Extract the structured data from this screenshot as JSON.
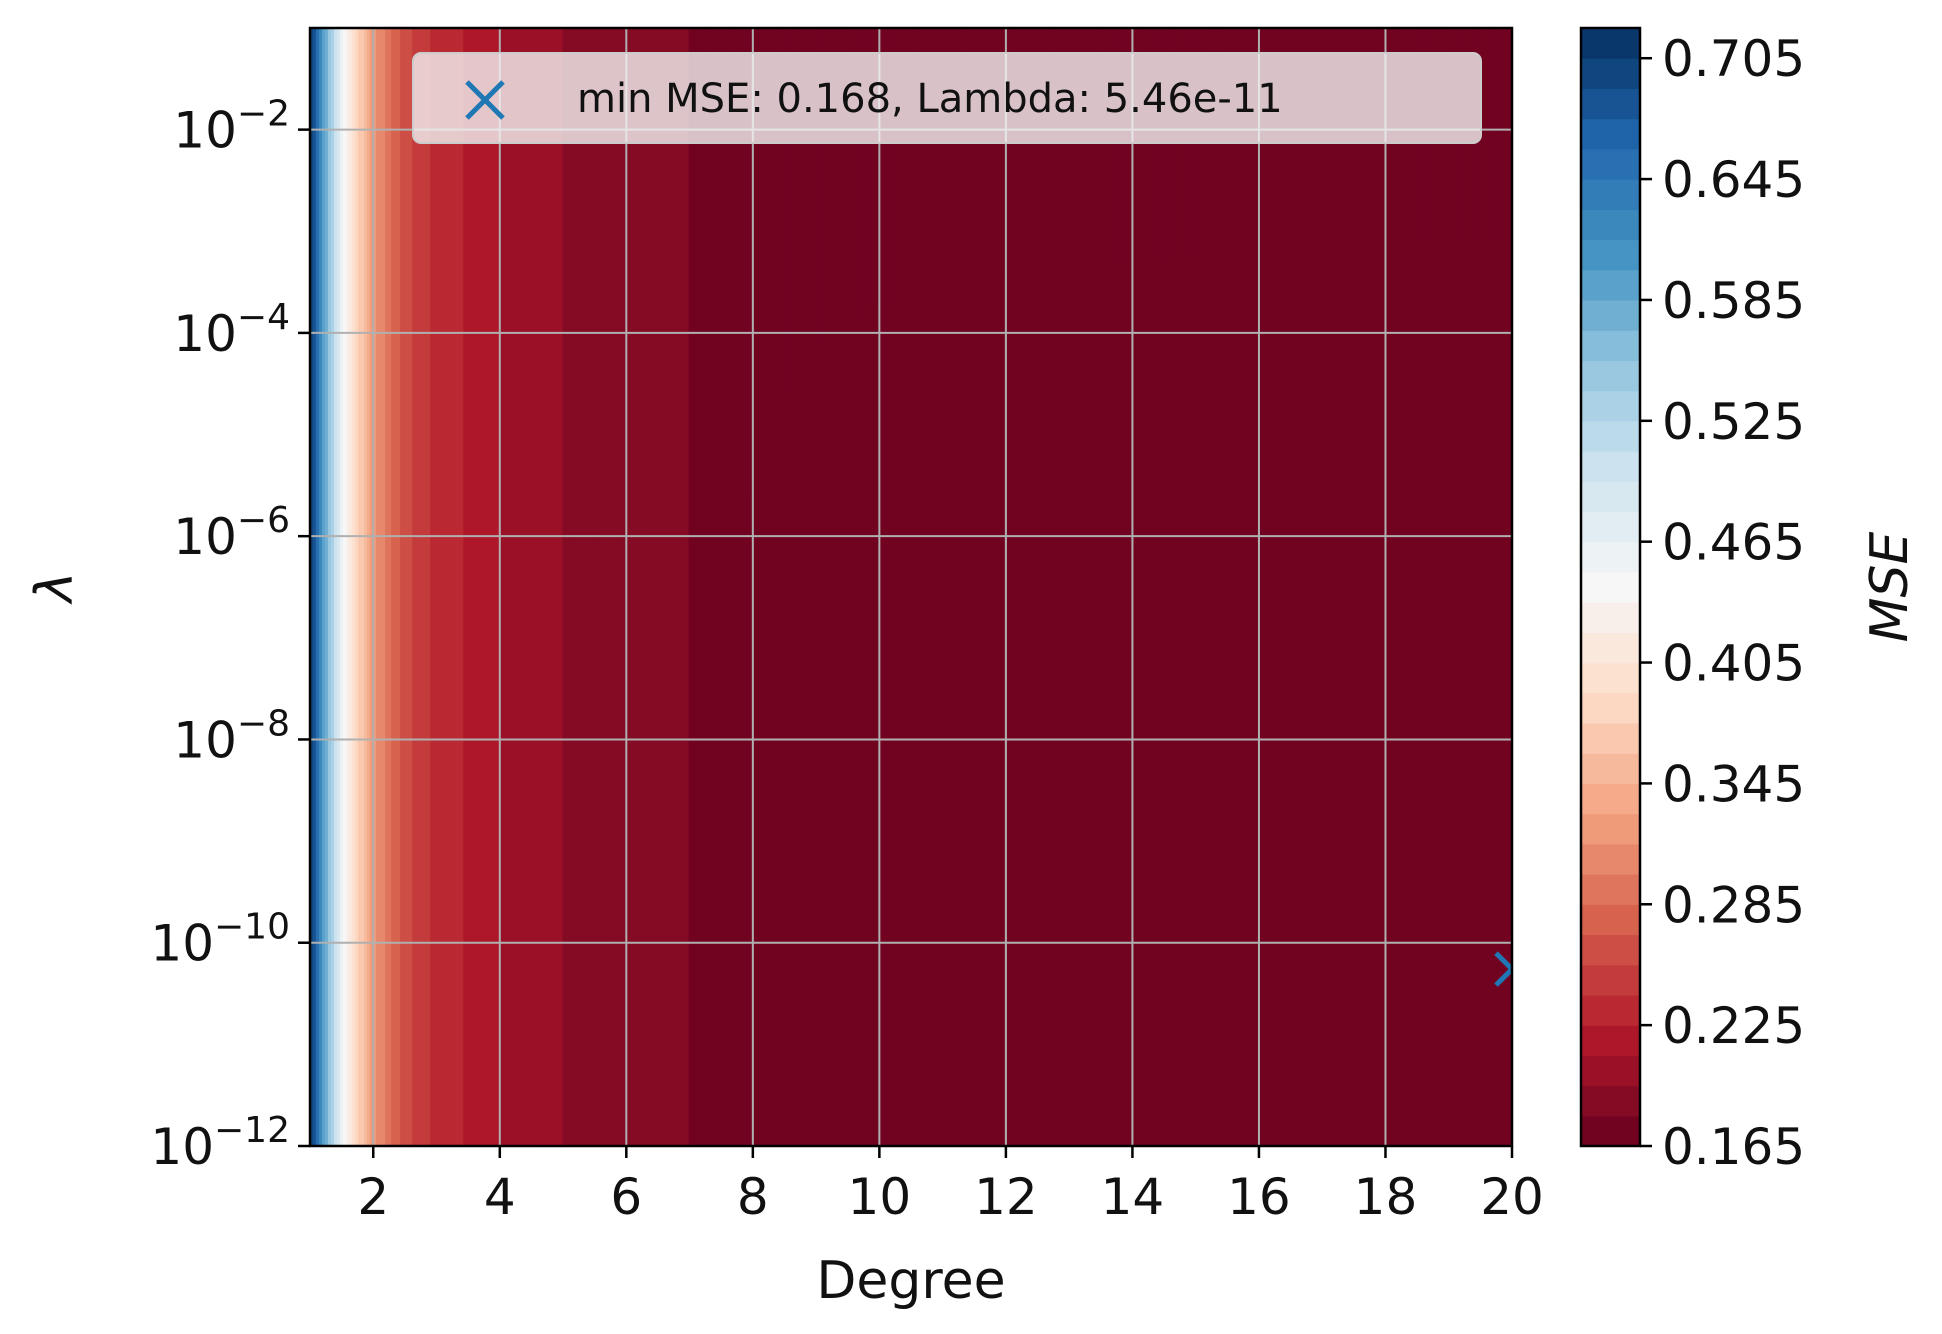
{
  "chart_data": {
    "type": "contourf",
    "xlabel": "Degree",
    "ylabel": "λ",
    "xlim": [
      1,
      20
    ],
    "ylim_log10": [
      -12,
      -1
    ],
    "x_ticks": [
      {
        "value": 2,
        "label": "2"
      },
      {
        "value": 4,
        "label": "4"
      },
      {
        "value": 6,
        "label": "6"
      },
      {
        "value": 8,
        "label": "8"
      },
      {
        "value": 10,
        "label": "10"
      },
      {
        "value": 12,
        "label": "12"
      },
      {
        "value": 14,
        "label": "14"
      },
      {
        "value": 16,
        "label": "16"
      },
      {
        "value": 18,
        "label": "18"
      },
      {
        "value": 20,
        "label": "20"
      }
    ],
    "y_ticks": [
      {
        "value": -2,
        "base": "10",
        "exp": "−2"
      },
      {
        "value": -4,
        "base": "10",
        "exp": "−4"
      },
      {
        "value": -6,
        "base": "10",
        "exp": "−6"
      },
      {
        "value": -8,
        "base": "10",
        "exp": "−8"
      },
      {
        "value": -10,
        "base": "10",
        "exp": "−10"
      },
      {
        "value": -12,
        "base": "10",
        "exp": "−12"
      }
    ],
    "grid": true,
    "colormap": "RdBu",
    "colorbar": {
      "label": "MSE",
      "min": 0.165,
      "max": 0.72,
      "ticks": [
        "0.705",
        "0.645",
        "0.585",
        "0.525",
        "0.465",
        "0.405",
        "0.345",
        "0.285",
        "0.225",
        "0.165"
      ],
      "tick_values": [
        0.705,
        0.645,
        0.585,
        0.525,
        0.465,
        0.405,
        0.345,
        0.285,
        0.225,
        0.165
      ],
      "levels": 37
    },
    "mse_by_degree": [
      {
        "degree": 1.0,
        "mse": 0.715
      },
      {
        "degree": 1.25,
        "mse": 0.58
      },
      {
        "degree": 1.5,
        "mse": 0.46
      },
      {
        "degree": 1.75,
        "mse": 0.38
      },
      {
        "degree": 2.0,
        "mse": 0.32
      },
      {
        "degree": 2.5,
        "mse": 0.26
      },
      {
        "degree": 3.0,
        "mse": 0.235
      },
      {
        "degree": 4.0,
        "mse": 0.21
      },
      {
        "degree": 5.0,
        "mse": 0.195
      },
      {
        "degree": 7.0,
        "mse": 0.18
      },
      {
        "degree": 10.0,
        "mse": 0.172
      },
      {
        "degree": 20.0,
        "mse": 0.168
      }
    ],
    "marker": {
      "type": "x",
      "degree": 20,
      "lambda_log10": -10.26,
      "color": "#1f77b4"
    },
    "legend": {
      "placement": "top-right",
      "entries": [
        {
          "label": "min MSE: 0.168, Lambda: 5.46e-11",
          "marker": "x",
          "color": "#1f77b4"
        }
      ]
    }
  }
}
